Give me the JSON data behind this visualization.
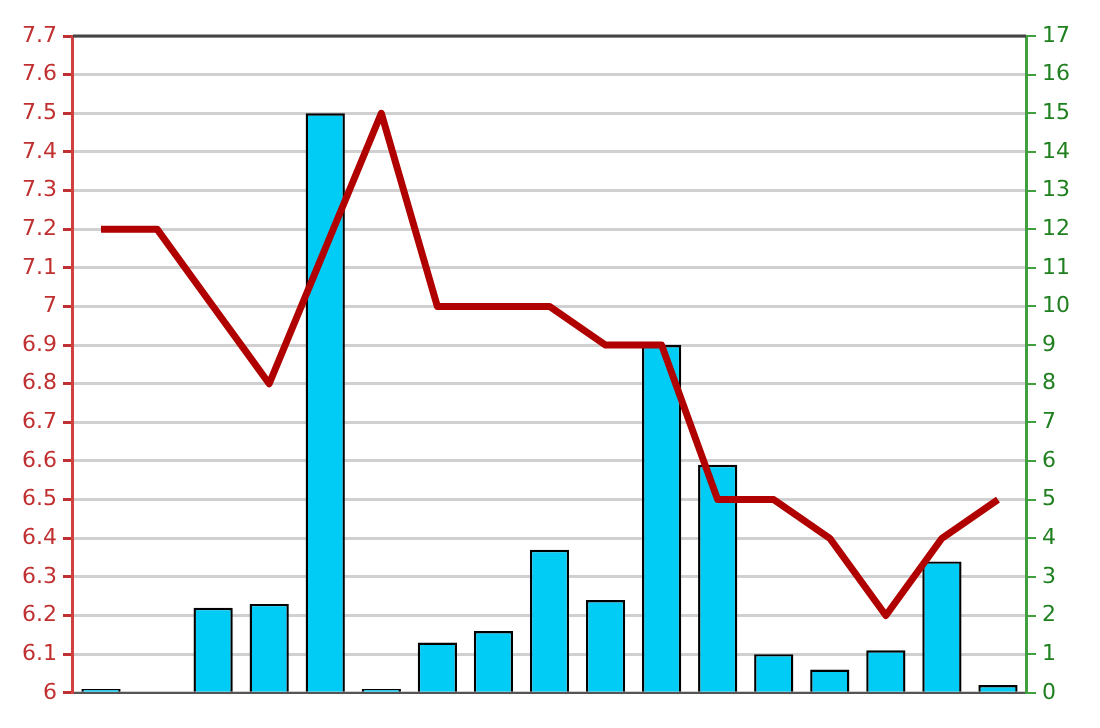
{
  "chart_data": {
    "type": "bar",
    "categories": [
      null,
      null,
      null,
      null,
      null,
      null,
      null,
      null,
      null,
      null,
      null,
      null,
      null,
      null,
      null,
      null,
      null
    ],
    "series": [
      {
        "axis": "y2",
        "color": "#00ccf5",
        "values": [
          0.1,
          0,
          2.2,
          2.3,
          15,
          0.1,
          1.3,
          1.6,
          3.7,
          2.4,
          9,
          5.9,
          1.0,
          0.6,
          1.1,
          3.4,
          0.2
        ]
      },
      {
        "type": "line",
        "axis": "y",
        "color": "#b00000",
        "values": [
          7.2,
          7.2,
          7.0,
          6.8,
          7.15,
          7.5,
          7.0,
          7.0,
          7.0,
          6.9,
          6.9,
          6.5,
          6.5,
          6.4,
          6.2,
          6.4,
          6.5
        ]
      }
    ],
    "ylim": [
      6,
      7.7
    ],
    "yticks": [
      6,
      6.1,
      6.2,
      6.3,
      6.4,
      6.5,
      6.6,
      6.7,
      6.8,
      6.9,
      7,
      7.1,
      7.2,
      7.3,
      7.4,
      7.5,
      7.6,
      7.7
    ],
    "y2lim": [
      0,
      17
    ],
    "y2ticks": [
      0,
      1,
      2,
      3,
      4,
      5,
      6,
      7,
      8,
      9,
      10,
      11,
      12,
      13,
      14,
      15,
      16,
      17
    ],
    "grid": "y",
    "legend": false,
    "marker": "none",
    "line_style": "solid"
  }
}
